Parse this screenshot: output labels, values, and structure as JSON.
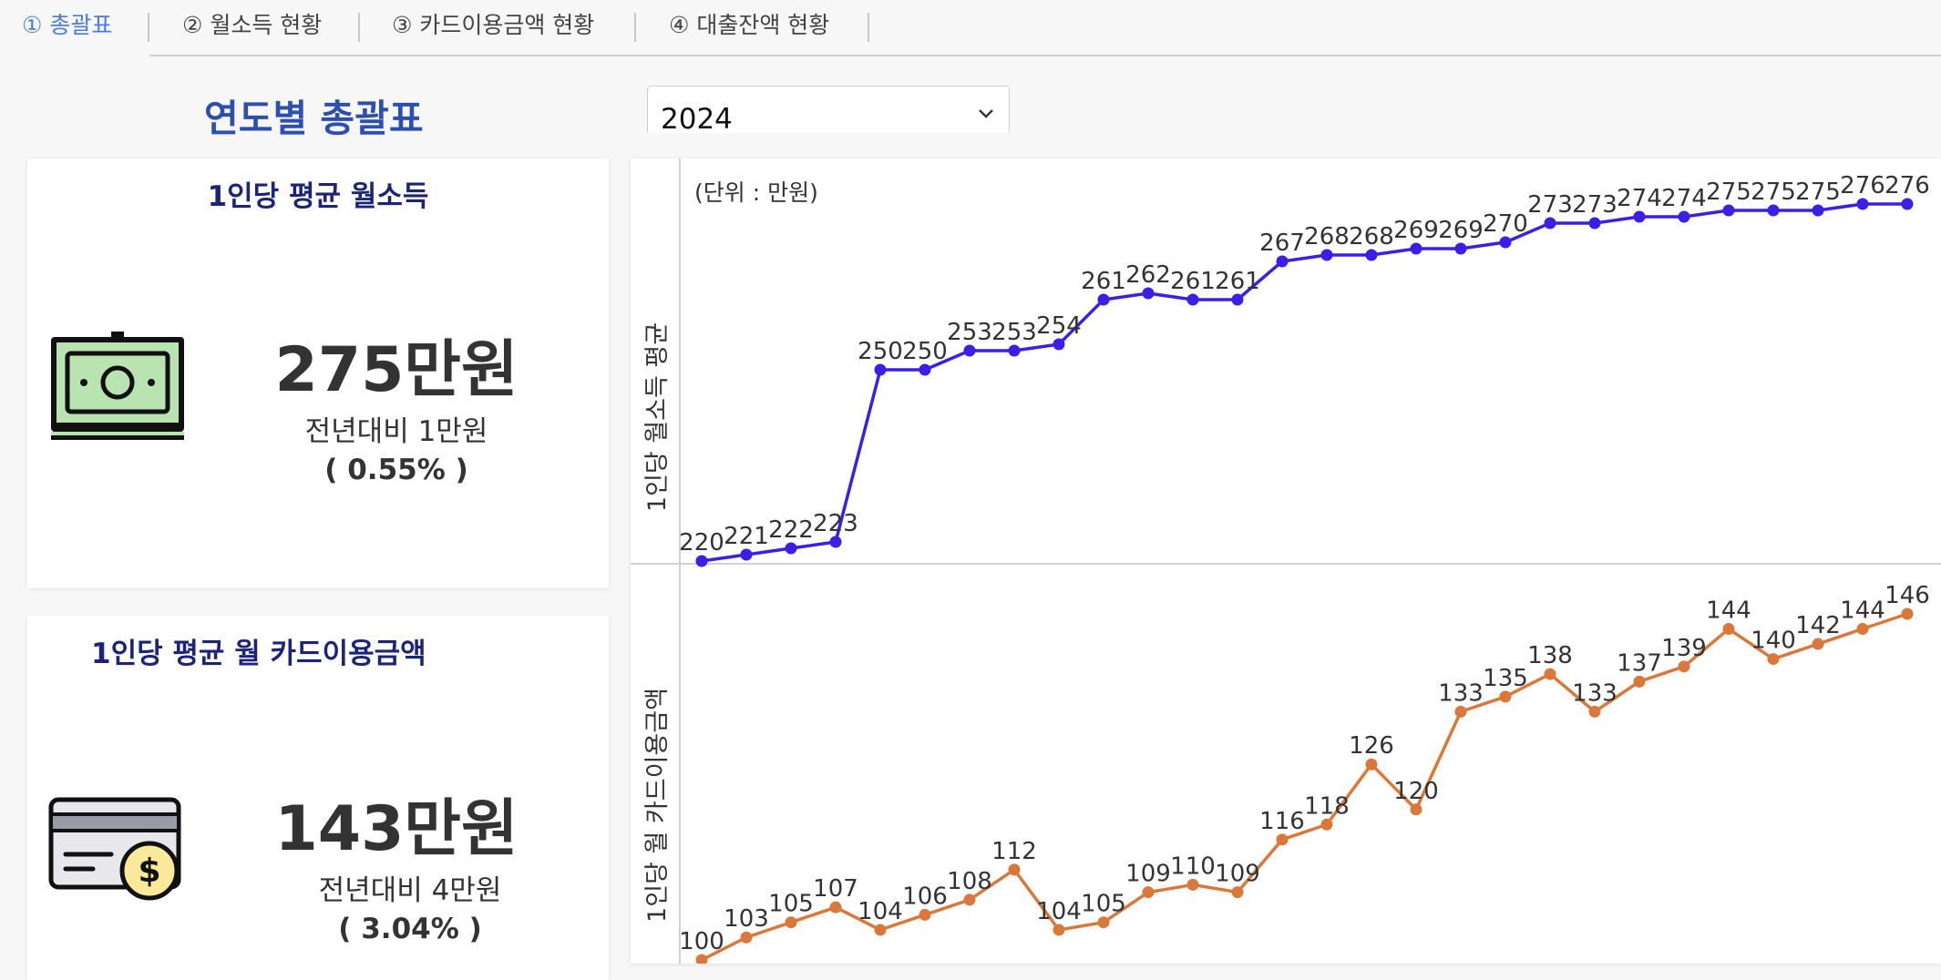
{
  "tabs": [
    {
      "label": "① 총괄표",
      "active": true
    },
    {
      "label": "② 월소득 현황",
      "active": false
    },
    {
      "label": "③ 카드이용금액 현황",
      "active": false
    },
    {
      "label": "④ 대출잔액 현황",
      "active": false
    }
  ],
  "page_title": "연도별 총괄표",
  "year_select": {
    "value": "2024"
  },
  "cards": [
    {
      "title": "1인당 평균 월소득",
      "icon": "money-bills-icon",
      "value": "275만원",
      "change": "전년대비 1만원",
      "change_pct": "( 0.55% )"
    },
    {
      "title": "1인당 평균 월 카드이용금액",
      "icon": "credit-card-dollar-icon",
      "value": "143만원",
      "change": "전년대비 4만원",
      "change_pct": "( 3.04% )"
    }
  ],
  "colors": {
    "income_line": "#3a1fe6",
    "card_line": "#d9783a",
    "tab_active": "#4b7be0",
    "title": "#2d4fb0",
    "card_title": "#1c2478"
  },
  "chart_data": [
    {
      "type": "line",
      "unit_note": "(단위 : 만원)",
      "ylabel": "1인당 월소득 평균",
      "values": [
        220,
        221,
        222,
        223,
        250,
        250,
        253,
        253,
        254,
        261,
        262,
        261,
        261,
        267,
        268,
        268,
        269,
        269,
        270,
        273,
        273,
        274,
        274,
        275,
        275,
        275,
        276,
        276
      ],
      "ylim": [
        220,
        276
      ],
      "grid": false
    },
    {
      "type": "line",
      "ylabel": "1인당 월 카드이용금액",
      "values": [
        100,
        103,
        105,
        107,
        104,
        106,
        108,
        112,
        104,
        105,
        109,
        110,
        109,
        116,
        118,
        126,
        120,
        133,
        135,
        138,
        133,
        137,
        139,
        144,
        140,
        142,
        144,
        146
      ],
      "ylim": [
        100,
        146
      ],
      "grid": false
    }
  ]
}
